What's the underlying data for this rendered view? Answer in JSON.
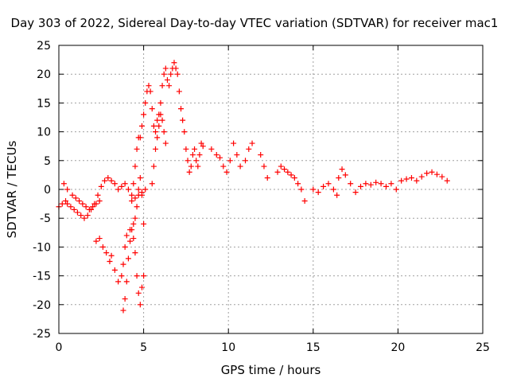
{
  "chart_data": {
    "type": "scatter",
    "title": "Day 303 of 2022, Sidereal Day-to-day VTEC variation (SDTVAR) for receiver mac1",
    "xlabel": "GPS time / hours",
    "ylabel": "SDTVAR / TECUs",
    "xlim": [
      0,
      25
    ],
    "ylim": [
      -25,
      25
    ],
    "xticks": [
      0,
      5,
      10,
      15,
      20,
      25
    ],
    "yticks": [
      -25,
      -20,
      -15,
      -10,
      -5,
      0,
      5,
      10,
      15,
      20,
      25
    ],
    "grid": true,
    "marker": "+",
    "series": [
      {
        "name": "SDTVAR",
        "color": "#ff0000",
        "x": [
          0.0,
          0.2,
          0.4,
          0.5,
          0.7,
          0.9,
          1.1,
          1.3,
          1.5,
          1.7,
          1.9,
          2.1,
          2.3,
          2.5,
          2.7,
          2.9,
          3.1,
          3.3,
          3.5,
          3.7,
          3.9,
          4.1,
          4.3,
          4.5,
          4.7,
          4.9,
          5.1,
          0.3,
          0.5,
          0.8,
          1.0,
          1.2,
          1.4,
          1.6,
          1.8,
          2.0,
          2.2,
          2.4,
          2.2,
          2.4,
          2.6,
          2.8,
          3.0,
          3.1,
          3.3,
          3.5,
          3.7,
          3.8,
          3.9,
          4.0,
          4.2,
          4.4,
          4.5,
          4.6,
          4.7,
          4.8,
          4.9,
          5.0,
          4.3,
          4.4,
          4.5,
          4.6,
          4.7,
          4.8,
          4.9,
          5.0,
          5.1,
          5.2,
          5.3,
          5.4,
          5.5,
          5.6,
          5.7,
          5.8,
          5.9,
          6.0,
          6.1,
          6.2,
          6.3,
          6.4,
          6.5,
          6.6,
          6.7,
          6.8,
          6.9,
          7.0,
          7.1,
          7.2,
          7.3,
          7.4,
          7.5,
          7.6,
          7.7,
          7.8,
          7.9,
          8.0,
          8.1,
          8.2,
          8.3,
          8.4,
          8.5,
          3.8,
          3.9,
          4.0,
          4.1,
          4.2,
          4.3,
          4.4,
          4.5,
          4.6,
          4.7,
          4.8,
          4.9,
          5.0,
          5.5,
          5.6,
          5.7,
          5.8,
          5.9,
          6.0,
          6.1,
          6.2,
          6.3,
          9.0,
          9.3,
          9.5,
          9.7,
          9.9,
          10.1,
          10.3,
          10.5,
          10.7,
          11.0,
          11.2,
          11.4,
          11.9,
          12.1,
          12.3,
          12.9,
          13.1,
          13.3,
          13.5,
          13.7,
          13.9,
          14.1,
          14.3,
          14.5,
          15.0,
          15.3,
          15.6,
          15.9,
          16.2,
          16.4,
          16.5,
          16.7,
          16.9,
          17.2,
          17.5,
          17.8,
          18.1,
          18.4,
          18.7,
          19.0,
          19.3,
          19.6,
          19.9,
          20.2,
          20.5,
          20.8,
          21.1,
          21.4,
          21.7,
          22.0,
          22.3,
          22.6,
          22.9
        ],
        "y": [
          -3.0,
          -2.5,
          -2.0,
          -2.5,
          -3.0,
          -3.5,
          -4.0,
          -4.5,
          -5.0,
          -4.5,
          -3.5,
          -2.5,
          -1.0,
          0.5,
          1.5,
          2.0,
          1.5,
          1.0,
          0.0,
          0.5,
          1.0,
          0.0,
          -1.0,
          -1.5,
          -1.0,
          -0.5,
          0.0,
          1.0,
          0.0,
          -1.0,
          -1.5,
          -2.0,
          -2.5,
          -3.0,
          -3.5,
          -3.0,
          -2.5,
          -2.0,
          -9.0,
          -8.5,
          -10.0,
          -11.0,
          -12.5,
          -11.5,
          -14.0,
          -16.0,
          -15.0,
          -13.0,
          -10.0,
          -8.0,
          -7.0,
          -8.5,
          -11.0,
          -15.0,
          -18.0,
          -20.0,
          -17.0,
          -15.0,
          -2.0,
          1.0,
          4.0,
          7.0,
          9.0,
          9.0,
          11.0,
          13.0,
          15.0,
          17.0,
          18.0,
          17.0,
          14.0,
          11.0,
          10.0,
          12.0,
          13.0,
          15.0,
          18.0,
          20.0,
          21.0,
          19.0,
          18.0,
          20.0,
          21.0,
          22.0,
          21.0,
          20.0,
          17.0,
          14.0,
          12.0,
          10.0,
          7.0,
          5.0,
          3.0,
          4.0,
          6.0,
          7.0,
          5.0,
          4.0,
          6.0,
          8.0,
          7.5,
          -21.0,
          -19.0,
          -16.0,
          -12.0,
          -9.0,
          -7.0,
          -6.0,
          -5.0,
          -3.0,
          0.0,
          2.0,
          -1.0,
          -6.0,
          1.0,
          4.0,
          7.0,
          9.0,
          11.0,
          13.0,
          12.0,
          10.0,
          8.0,
          7.0,
          6.0,
          5.5,
          4.0,
          3.0,
          5.0,
          8.0,
          6.0,
          4.0,
          5.0,
          7.0,
          8.0,
          6.0,
          4.0,
          2.0,
          3.0,
          4.0,
          3.5,
          3.0,
          2.5,
          2.0,
          1.0,
          0.0,
          -2.0,
          0.0,
          -0.5,
          0.5,
          1.0,
          0.0,
          -1.0,
          2.0,
          3.5,
          2.5,
          1.0,
          -0.5,
          0.5,
          1.0,
          0.8,
          1.2,
          1.0,
          0.5,
          1.0,
          0.0,
          1.5,
          1.8,
          2.0,
          1.5,
          2.2,
          2.8,
          3.0,
          2.6,
          2.2,
          1.5
        ]
      }
    ]
  }
}
